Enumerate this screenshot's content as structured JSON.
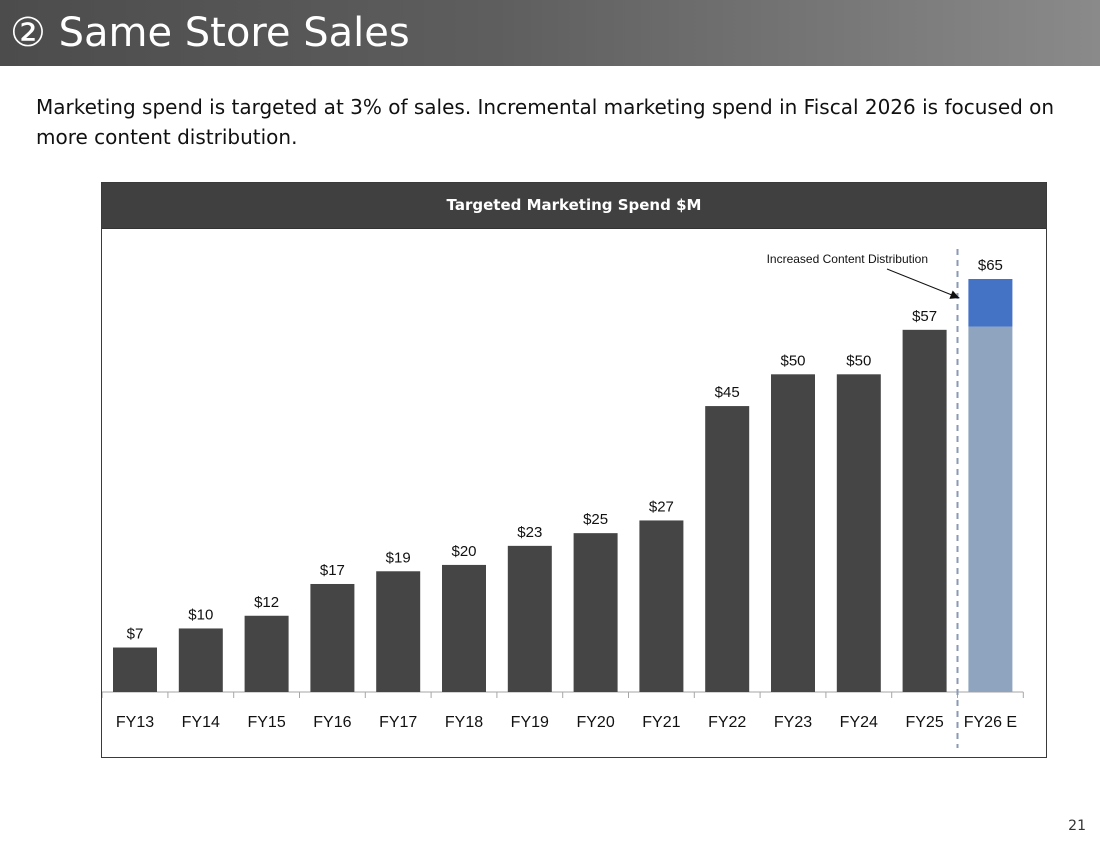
{
  "slide": {
    "title": "② Same Store Sales",
    "intro": "Marketing spend is targeted at 3% of sales. Incremental marketing spend in Fiscal 2026 is focused on more content distribution.",
    "page_number": "21"
  },
  "chart_data": {
    "type": "bar",
    "title": "Targeted Marketing Spend $M",
    "xlabel": "",
    "ylabel": "",
    "ylim": [
      0,
      70
    ],
    "grid": false,
    "legend": "none",
    "categories": [
      "FY13",
      "FY14",
      "FY15",
      "FY16",
      "FY17",
      "FY18",
      "FY19",
      "FY20",
      "FY21",
      "FY22",
      "FY23",
      "FY24",
      "FY25",
      "FY26 E"
    ],
    "values": [
      7,
      10,
      12,
      17,
      19,
      20,
      23,
      25,
      27,
      45,
      50,
      50,
      57,
      65
    ],
    "value_labels": [
      "$7",
      "$10",
      "$12",
      "$17",
      "$19",
      "$20",
      "$23",
      "$25",
      "$27",
      "$45",
      "$50",
      "$50",
      "$57",
      "$65"
    ],
    "estimate_breakdown": {
      "category": "FY26 E",
      "base": 57.5,
      "increment": 7.5
    },
    "annotation": {
      "text": "Increased Content Distribution",
      "target_category": "FY26 E"
    },
    "colors": {
      "actual": "#454545",
      "estimate_base": "#8fa5bf",
      "estimate_increment": "#4472c4",
      "divider": "#8a9ab5",
      "axis": "#a6a6a6"
    }
  }
}
